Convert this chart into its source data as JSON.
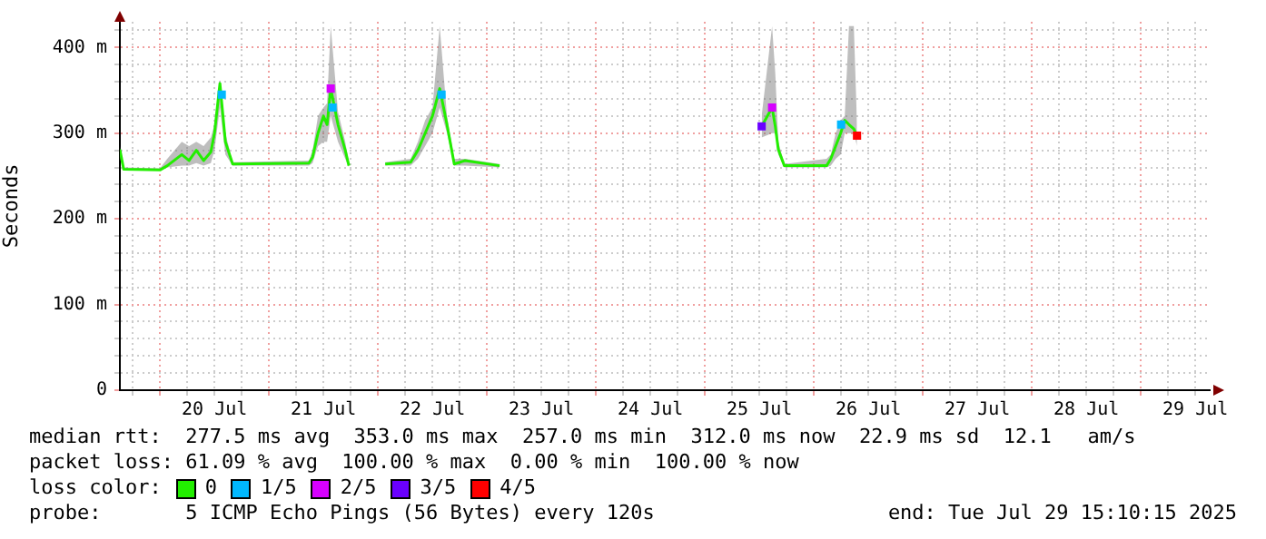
{
  "chart_data": {
    "type": "line",
    "ylabel": "Seconds",
    "legend_title": "loss color:",
    "legend": "bottom",
    "grid": true,
    "line_style": "solid",
    "xlim": [
      "2025-07-19T15:10",
      "2025-07-29T15:10"
    ],
    "xticks": [
      {
        "value": "2025-07-19T18:00",
        "label": null
      },
      {
        "value": "2025-07-20T00:00",
        "label": null
      },
      {
        "value": "2025-07-20T06:00",
        "label": null
      },
      {
        "value": "2025-07-20T12:00",
        "label": "20 Jul"
      },
      {
        "value": "2025-07-20T18:00",
        "label": null
      },
      {
        "value": "2025-07-21T00:00",
        "label": null
      },
      {
        "value": "2025-07-21T06:00",
        "label": null
      },
      {
        "value": "2025-07-21T12:00",
        "label": "21 Jul"
      },
      {
        "value": "2025-07-21T18:00",
        "label": null
      },
      {
        "value": "2025-07-22T00:00",
        "label": null
      },
      {
        "value": "2025-07-22T06:00",
        "label": null
      },
      {
        "value": "2025-07-22T12:00",
        "label": "22 Jul"
      },
      {
        "value": "2025-07-22T18:00",
        "label": null
      },
      {
        "value": "2025-07-23T00:00",
        "label": null
      },
      {
        "value": "2025-07-23T06:00",
        "label": null
      },
      {
        "value": "2025-07-23T12:00",
        "label": "23 Jul"
      },
      {
        "value": "2025-07-23T18:00",
        "label": null
      },
      {
        "value": "2025-07-24T00:00",
        "label": null
      },
      {
        "value": "2025-07-24T06:00",
        "label": null
      },
      {
        "value": "2025-07-24T12:00",
        "label": "24 Jul"
      },
      {
        "value": "2025-07-24T18:00",
        "label": null
      },
      {
        "value": "2025-07-25T00:00",
        "label": null
      },
      {
        "value": "2025-07-25T06:00",
        "label": null
      },
      {
        "value": "2025-07-25T12:00",
        "label": "25 Jul"
      },
      {
        "value": "2025-07-25T18:00",
        "label": null
      },
      {
        "value": "2025-07-26T00:00",
        "label": null
      },
      {
        "value": "2025-07-26T06:00",
        "label": null
      },
      {
        "value": "2025-07-26T12:00",
        "label": "26 Jul"
      },
      {
        "value": "2025-07-26T18:00",
        "label": null
      },
      {
        "value": "2025-07-27T00:00",
        "label": null
      },
      {
        "value": "2025-07-27T06:00",
        "label": null
      },
      {
        "value": "2025-07-27T12:00",
        "label": "27 Jul"
      },
      {
        "value": "2025-07-27T18:00",
        "label": null
      },
      {
        "value": "2025-07-28T00:00",
        "label": null
      },
      {
        "value": "2025-07-28T06:00",
        "label": null
      },
      {
        "value": "2025-07-28T12:00",
        "label": "28 Jul"
      },
      {
        "value": "2025-07-28T18:00",
        "label": null
      },
      {
        "value": "2025-07-29T00:00",
        "label": null
      },
      {
        "value": "2025-07-29T06:00",
        "label": null
      },
      {
        "value": "2025-07-29T12:00",
        "label": "29 Jul"
      }
    ],
    "ylim": [
      0,
      430
    ],
    "yticks": [
      0,
      {
        "value": 20,
        "label": null
      },
      {
        "value": 40,
        "label": null
      },
      {
        "value": 60,
        "label": null
      },
      {
        "value": 80,
        "label": null
      },
      {
        "value": 100,
        "label": "100 m"
      },
      {
        "value": 120,
        "label": null
      },
      {
        "value": 140,
        "label": null
      },
      {
        "value": 160,
        "label": null
      },
      {
        "value": 180,
        "label": null
      },
      {
        "value": 200,
        "label": "200 m"
      },
      {
        "value": 220,
        "label": null
      },
      {
        "value": 240,
        "label": null
      },
      {
        "value": 260,
        "label": null
      },
      {
        "value": 280,
        "label": null
      },
      {
        "value": 300,
        "label": "300 m"
      },
      {
        "value": 320,
        "label": null
      },
      {
        "value": 340,
        "label": null
      },
      {
        "value": 360,
        "label": null
      },
      {
        "value": 380,
        "label": null
      },
      {
        "value": 400,
        "label": "400 m"
      },
      {
        "value": 420,
        "label": null
      }
    ],
    "series": [
      {
        "name": "0",
        "color": "#22ee00",
        "x": [
          "2025-07-19T15:10",
          "2025-07-19T16:00",
          "2025-07-20T00:00",
          "2025-07-20T01:36",
          "2025-07-20T04:48",
          "2025-07-20T06:24",
          "2025-07-20T08:00",
          "2025-07-20T09:36",
          "2025-07-20T11:12",
          "2025-07-20T12:00",
          "2025-07-20T13:12",
          "2025-07-20T14:24",
          "2025-07-20T16:00",
          "2025-07-21T08:48",
          "2025-07-21T09:36",
          "2025-07-21T10:48",
          "2025-07-21T12:00",
          "2025-07-21T12:48",
          "2025-07-21T13:36",
          "2025-07-21T15:12",
          "2025-07-21T16:48",
          "2025-07-21T17:36",
          "2025-07-21T20:00",
          "2025-07-22T01:36",
          "2025-07-22T07:12",
          "2025-07-22T08:48",
          "2025-07-22T10:24",
          "2025-07-22T12:00",
          "2025-07-22T13:36",
          "2025-07-22T15:12",
          "2025-07-22T16:48",
          "2025-07-22T19:12",
          "2025-07-23T02:48",
          "2025-07-24T12:00",
          "2025-07-25T12:30",
          "2025-07-25T14:48",
          "2025-07-25T15:30",
          "2025-07-25T16:10",
          "2025-07-25T17:30",
          "2025-07-26T02:48",
          "2025-07-26T03:44",
          "2025-07-26T04:48",
          "2025-07-26T05:54",
          "2025-07-26T06:48",
          "2025-07-26T07:44",
          "2025-07-26T08:48",
          "2025-07-26T09:30"
        ],
        "values": [
          281,
          258,
          257,
          262,
          275,
          268,
          280,
          268,
          278,
          300,
          358,
          290,
          264,
          265,
          272,
          300,
          320,
          310,
          352,
          310,
          280,
          262,
          null,
          264,
          266,
          280,
          300,
          320,
          352,
          310,
          264,
          268,
          262,
          null,
          308,
          330,
          308,
          281,
          262,
          262,
          270,
          285,
          300,
          315,
          310,
          305,
          297
        ],
        "lower": [
          270,
          257,
          257,
          260,
          262,
          262,
          265,
          262,
          265,
          280,
          330,
          275,
          262,
          262,
          265,
          285,
          290,
          290,
          320,
          290,
          270,
          260,
          null,
          262,
          262,
          270,
          285,
          300,
          330,
          300,
          262,
          262,
          260,
          null,
          295,
          300,
          300,
          275,
          260,
          260,
          262,
          270,
          275,
          300,
          300,
          300,
          285
        ],
        "upper": [
          285,
          260,
          259,
          270,
          290,
          285,
          290,
          285,
          295,
          310,
          362,
          300,
          266,
          268,
          280,
          320,
          330,
          335,
          425,
          325,
          290,
          265,
          null,
          266,
          270,
          290,
          315,
          330,
          425,
          320,
          270,
          270,
          264,
          null,
          320,
          425,
          370,
          290,
          264,
          270,
          275,
          300,
          315,
          320,
          425,
          425,
          310
        ]
      },
      {
        "name": "1/5",
        "type": "scatter",
        "marker": "square",
        "color": "#00b8ff",
        "x": [
          "2025-07-20T13:36",
          "2025-07-21T14:00",
          "2025-07-22T14:00",
          "2025-07-26T06:00"
        ],
        "values": [
          345,
          330,
          345,
          310
        ]
      },
      {
        "name": "2/5",
        "type": "scatter",
        "marker": "square",
        "color": "#d600ff",
        "x": [
          "2025-07-21T13:36",
          "2025-07-25T14:48"
        ],
        "values": [
          352,
          330
        ]
      },
      {
        "name": "3/5",
        "type": "scatter",
        "marker": "square",
        "color": "#6a00ff",
        "x": [
          "2025-07-25T12:30"
        ],
        "values": [
          308
        ]
      },
      {
        "name": "4/5",
        "type": "scatter",
        "marker": "square",
        "color": "#ff0000",
        "x": [
          "2025-07-26T09:30"
        ],
        "values": [
          297
        ]
      }
    ],
    "annotations": [
      "median rtt:  277.5 ms avg  353.0 ms max  257.0 ms min  312.0 ms now  22.9 ms sd  12.1   am/s",
      "packet loss: 61.09 % avg  100.00 % max  0.00 % min  100.00 % now",
      "probe:       5 ICMP Echo Pings (56 Bytes) every 120s",
      "end: Tue Jul 29 15:10:15 2025"
    ]
  }
}
